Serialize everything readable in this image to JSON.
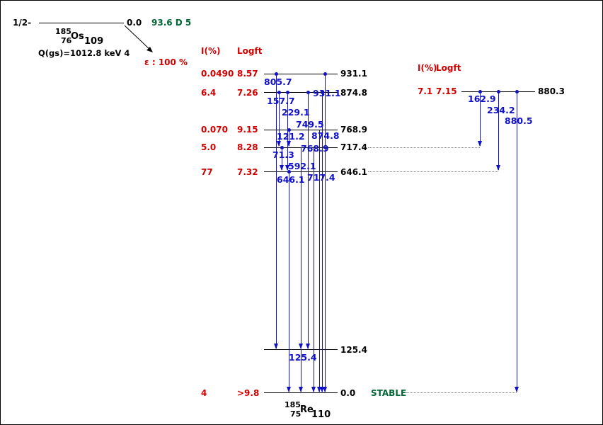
{
  "parent": {
    "spin": "1/2-",
    "energy": "0.0",
    "halflife": "93.6 D 5",
    "mass": "185",
    "z": "76",
    "symbol": "Os",
    "n": "109",
    "qvalue": "Q(gs)=1012.8 keV 4",
    "decay": "ε : 100 %"
  },
  "daughter": {
    "mass": "185",
    "z": "75",
    "symbol": "Re",
    "n": "110",
    "stable_label": "STABLE"
  },
  "headers": {
    "intensity": "I(%)",
    "logft": "Logft"
  },
  "levels": [
    {
      "energy": "931.1",
      "intensity": "0.0490",
      "logft": "8.57"
    },
    {
      "energy": "874.8",
      "intensity": "6.4",
      "logft": "7.26"
    },
    {
      "energy": "768.9",
      "intensity": "0.070",
      "logft": "9.15"
    },
    {
      "energy": "717.4",
      "intensity": "5.0",
      "logft": "8.28"
    },
    {
      "energy": "646.1",
      "intensity": "77",
      "logft": "7.32"
    },
    {
      "energy": "125.4",
      "intensity": "",
      "logft": ""
    },
    {
      "energy": "0.0",
      "intensity": "4",
      "logft": ">9.8"
    }
  ],
  "side_level": {
    "energy": "880.3",
    "intensity": "7.1",
    "logft": "7.15"
  },
  "gammas": [
    "805.7",
    "931.1",
    "157.7",
    "229.1",
    "749.5",
    "874.8",
    "121.2",
    "768.9",
    "71.3",
    "592.1",
    "717.4",
    "646.1",
    "125.4"
  ],
  "side_gammas": [
    "162.9",
    "234.2",
    "880.5"
  ],
  "colors": {
    "level_label": "#d00000",
    "gamma": "#1010c8",
    "stable": "#006633"
  }
}
